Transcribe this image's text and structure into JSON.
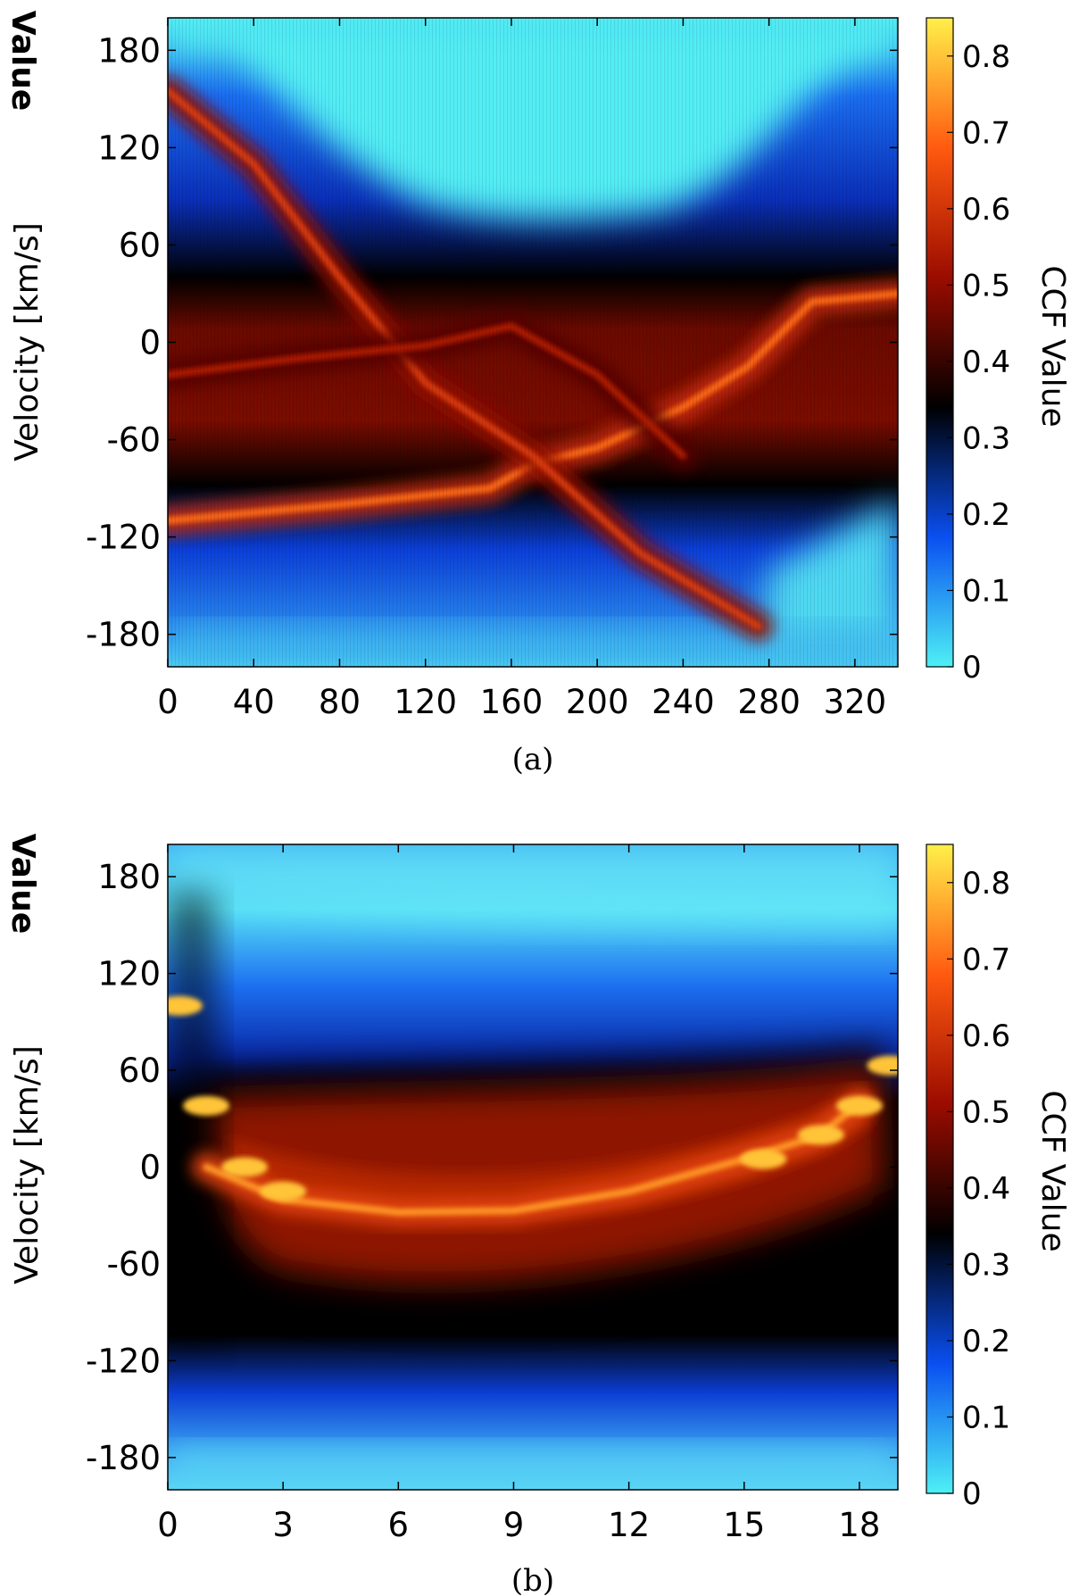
{
  "chart_data": [
    {
      "type": "heatmap",
      "panel_caption": "(a)",
      "x_ticks": [
        "0",
        "40",
        "80",
        "120",
        "160",
        "200",
        "240",
        "280",
        "320"
      ],
      "x_tick_values": [
        0,
        40,
        80,
        120,
        160,
        200,
        240,
        280,
        320
      ],
      "xlim": [
        0,
        340
      ],
      "xlabel": "",
      "ylabel": "Velocity [km/s]",
      "y_ticks": [
        "180",
        "120",
        "60",
        "0",
        "-60",
        "-120",
        "-180"
      ],
      "y_tick_values": [
        180,
        120,
        60,
        0,
        -60,
        -120,
        -180
      ],
      "ylim": [
        -200,
        200
      ],
      "clipped_title_fragment": "Value",
      "colorbar": {
        "label": "CCF Value",
        "range": [
          0,
          0.85
        ],
        "ticks": [
          "0.8",
          "0.7",
          "0.6",
          "0.5",
          "0.4",
          "0.3",
          "0.2",
          "0.1",
          "0"
        ],
        "tick_values": [
          0.8,
          0.7,
          0.6,
          0.5,
          0.4,
          0.3,
          0.2,
          0.1,
          0
        ],
        "colormap": [
          "#4ef0f5",
          "#0a4ff0",
          "#000000",
          "#9b0c00",
          "#ff5a10",
          "#fff04a"
        ]
      },
      "features": [
        {
          "name": "rising-track",
          "points": [
            [
              0,
              -110
            ],
            [
              80,
              -100
            ],
            [
              150,
              -90
            ],
            [
              170,
              -75
            ],
            [
              200,
              -65
            ],
            [
              240,
              -40
            ],
            [
              270,
              -15
            ],
            [
              300,
              25
            ],
            [
              340,
              30
            ]
          ],
          "ccf": 0.7
        },
        {
          "name": "falling-track",
          "points": [
            [
              0,
              155
            ],
            [
              40,
              110
            ],
            [
              80,
              40
            ],
            [
              120,
              -25
            ],
            [
              170,
              -70
            ],
            [
              220,
              -130
            ],
            [
              275,
              -175
            ]
          ],
          "ccf": 0.62
        },
        {
          "name": "upper-track",
          "points": [
            [
              0,
              -20
            ],
            [
              60,
              -10
            ],
            [
              120,
              -2
            ],
            [
              160,
              10
            ],
            [
              200,
              -20
            ],
            [
              240,
              -70
            ]
          ],
          "ccf": 0.55
        }
      ]
    },
    {
      "type": "heatmap",
      "panel_caption": "(b)",
      "x_ticks": [
        "0",
        "3",
        "6",
        "9",
        "12",
        "15",
        "18"
      ],
      "x_tick_values": [
        0,
        3,
        6,
        9,
        12,
        15,
        18
      ],
      "xlim": [
        0,
        19
      ],
      "xlabel": "",
      "ylabel": "Velocity [km/s]",
      "y_ticks": [
        "180",
        "120",
        "60",
        "0",
        "-60",
        "-120",
        "-180"
      ],
      "y_tick_values": [
        180,
        120,
        60,
        0,
        -60,
        -120,
        -180
      ],
      "ylim": [
        -200,
        200
      ],
      "clipped_title_fragment": "Value",
      "colorbar": {
        "label": "CCF Value",
        "range": [
          0,
          0.85
        ],
        "ticks": [
          "0.8",
          "0.7",
          "0.6",
          "0.5",
          "0.4",
          "0.3",
          "0.2",
          "0.1",
          "0"
        ],
        "tick_values": [
          0.8,
          0.7,
          0.6,
          0.5,
          0.4,
          0.3,
          0.2,
          0.1,
          0
        ],
        "colormap": [
          "#4ef0f5",
          "#0a4ff0",
          "#000000",
          "#9b0c00",
          "#ff5a10",
          "#fff04a"
        ]
      },
      "features": [
        {
          "name": "main-arc",
          "points": [
            [
              1,
              0
            ],
            [
              3,
              -20
            ],
            [
              6,
              -28
            ],
            [
              9,
              -27
            ],
            [
              12,
              -15
            ],
            [
              15,
              5
            ],
            [
              17,
              20
            ],
            [
              18,
              40
            ]
          ],
          "ccf": 0.75
        },
        {
          "name": "bright-spots",
          "points": [
            [
              1,
              38
            ],
            [
              2,
              0
            ],
            [
              3,
              -15
            ],
            [
              15.5,
              5
            ],
            [
              17,
              20
            ],
            [
              18,
              38
            ],
            [
              18.8,
              63
            ],
            [
              0.3,
              100
            ]
          ],
          "ccf": 0.8
        }
      ]
    }
  ]
}
